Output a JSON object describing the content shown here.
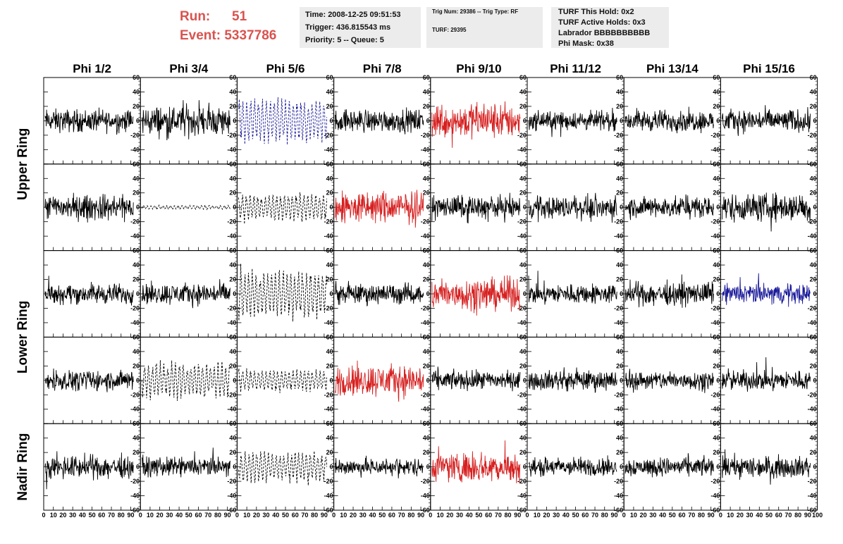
{
  "header": {
    "run_label": "Run:",
    "run_value": "51",
    "event_label": "Event:",
    "event_value": "5337786",
    "title_color": "#d9534f"
  },
  "info_time": {
    "time": "Time: 2008-12-25 09:51:53",
    "trigger": "Trigger: 436.815543 ms",
    "priority": "Priority: 5 -- Queue: 5"
  },
  "info_trig": {
    "trig": "Trig Num: 29386 -- Trig Type: RF",
    "turf": "TURF: 29395"
  },
  "info_turf": {
    "this_hold": "TURF This Hold: 0x2",
    "active_holds": "TURF Active Holds: 0x3",
    "labrador": "Labrador BBBBBBBBBB",
    "phi_mask": "Phi Mask: 0x38"
  },
  "chart_data": {
    "type": "line",
    "columns": [
      "Phi 1/2",
      "Phi 3/4",
      "Phi 5/6",
      "Phi 7/8",
      "Phi 9/10",
      "Phi 11/12",
      "Phi 13/14",
      "Phi 15/16"
    ],
    "row_groups": [
      "Upper Ring",
      "Lower Ring",
      "Nadir Ring"
    ],
    "ylim": [
      -60,
      60
    ],
    "y_ticks": [
      "-60",
      "-40",
      "-20",
      "0",
      "20",
      "40",
      "60"
    ],
    "xlim": [
      0,
      100
    ],
    "x_ticks": [
      "0",
      "10",
      "20",
      "30",
      "40",
      "50",
      "60",
      "70",
      "80",
      "90",
      "100"
    ],
    "colors": {
      "normal": "#000000",
      "trigger": "#d62020",
      "masked": "#1a1a9a"
    },
    "panels": [
      [
        {
          "style": "solid",
          "color": "normal",
          "amp": 17
        },
        {
          "style": "solid",
          "color": "normal",
          "amp": 22
        },
        {
          "style": "dash",
          "color": "masked",
          "amp": 32
        },
        {
          "style": "solid",
          "color": "normal",
          "amp": 17
        },
        {
          "style": "solid",
          "color": "trigger",
          "amp": 27
        },
        {
          "style": "solid",
          "color": "normal",
          "amp": 14
        },
        {
          "style": "solid",
          "color": "normal",
          "amp": 16
        },
        {
          "style": "solid",
          "color": "normal",
          "amp": 17
        }
      ],
      [
        {
          "style": "solid",
          "color": "normal",
          "amp": 19
        },
        {
          "style": "dash",
          "color": "normal",
          "amp": 3
        },
        {
          "style": "dash",
          "color": "normal",
          "amp": 20
        },
        {
          "style": "solid",
          "color": "trigger",
          "amp": 24
        },
        {
          "style": "solid",
          "color": "normal",
          "amp": 17
        },
        {
          "style": "solid",
          "color": "normal",
          "amp": 17
        },
        {
          "style": "solid",
          "color": "normal",
          "amp": 16
        },
        {
          "style": "solid",
          "color": "normal",
          "amp": 21
        }
      ],
      [
        {
          "style": "solid",
          "color": "normal",
          "amp": 15
        },
        {
          "style": "solid",
          "color": "normal",
          "amp": 16
        },
        {
          "style": "dash",
          "color": "normal",
          "amp": 34
        },
        {
          "style": "solid",
          "color": "normal",
          "amp": 15
        },
        {
          "style": "solid",
          "color": "trigger",
          "amp": 24
        },
        {
          "style": "solid",
          "color": "normal",
          "amp": 15
        },
        {
          "style": "solid",
          "color": "normal",
          "amp": 17
        },
        {
          "style": "solid",
          "color": "masked",
          "amp": 15
        }
      ],
      [
        {
          "style": "solid",
          "color": "normal",
          "amp": 15
        },
        {
          "style": "dash",
          "color": "normal",
          "amp": 27
        },
        {
          "style": "dash",
          "color": "normal",
          "amp": 16
        },
        {
          "style": "solid",
          "color": "trigger",
          "amp": 24
        },
        {
          "style": "solid",
          "color": "normal",
          "amp": 14
        },
        {
          "style": "solid",
          "color": "normal",
          "amp": 15
        },
        {
          "style": "solid",
          "color": "normal",
          "amp": 14
        },
        {
          "style": "solid",
          "color": "normal",
          "amp": 15
        }
      ],
      [
        {
          "style": "solid",
          "color": "normal",
          "amp": 17
        },
        {
          "style": "solid",
          "color": "normal",
          "amp": 14
        },
        {
          "style": "dash",
          "color": "normal",
          "amp": 22
        },
        {
          "style": "solid",
          "color": "normal",
          "amp": 13
        },
        {
          "style": "solid",
          "color": "trigger",
          "amp": 22
        },
        {
          "style": "solid",
          "color": "normal",
          "amp": 14
        },
        {
          "style": "solid",
          "color": "normal",
          "amp": 14
        },
        {
          "style": "solid",
          "color": "normal",
          "amp": 16
        }
      ]
    ]
  }
}
